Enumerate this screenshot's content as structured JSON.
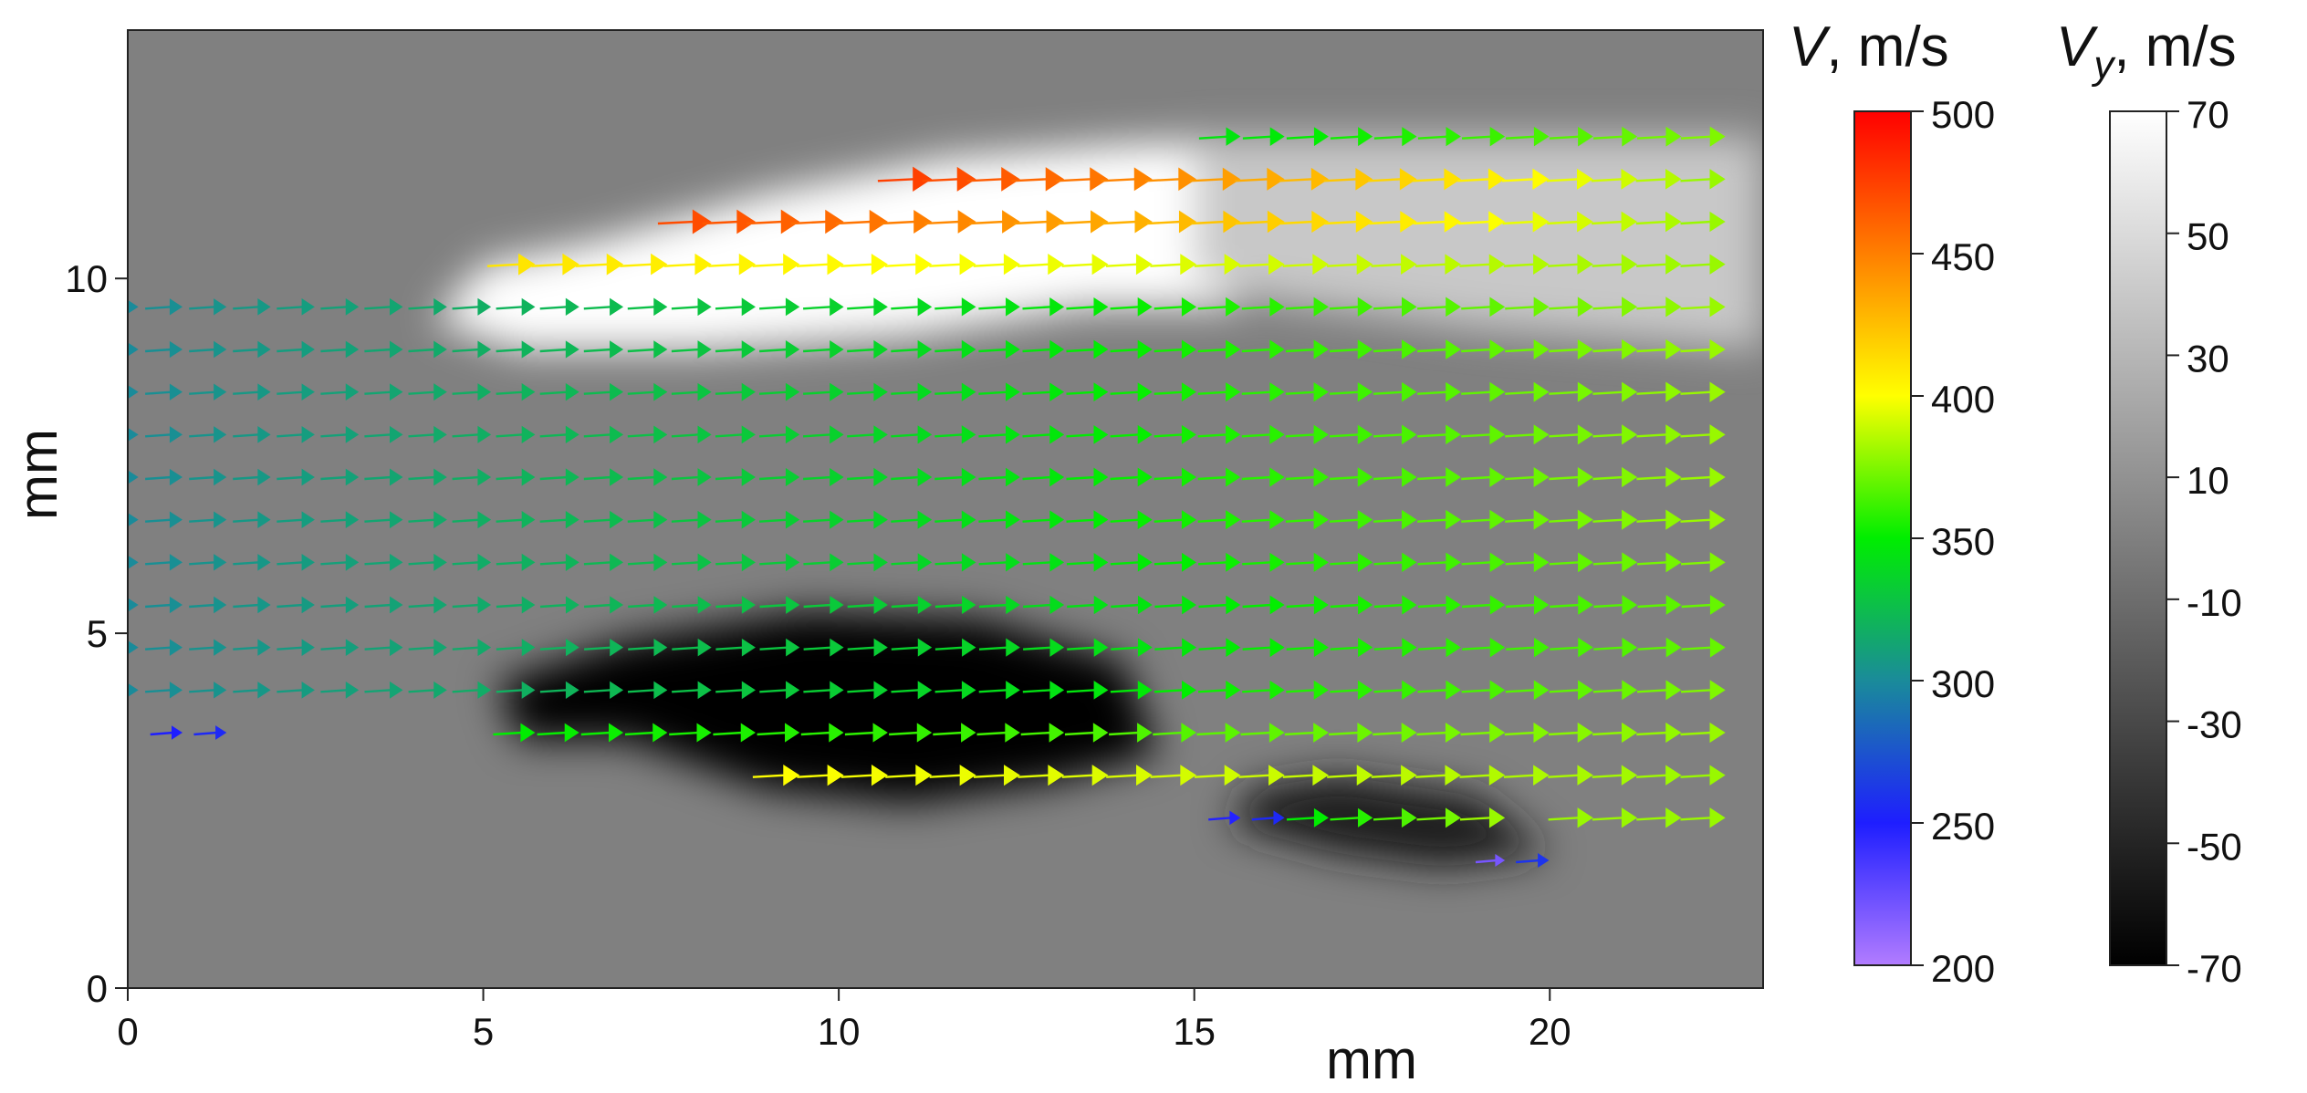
{
  "chart_data": {
    "type": "heatmap",
    "subtype": "velocity-vector field over grayscale contour map",
    "xlabel": "mm",
    "ylabel": "mm",
    "xlim": [
      0,
      23
    ],
    "ylim": [
      0,
      13.5
    ],
    "x_ticks": [
      "0",
      "5",
      "10",
      "15",
      "20"
    ],
    "y_ticks": [
      "0",
      "5",
      "10"
    ],
    "background_value_color": "#808080",
    "vector_colorbar": {
      "symbol": "V",
      "unit": ", m/s",
      "range": [
        200,
        500
      ],
      "ticks": [
        "500",
        "450",
        "400",
        "350",
        "300",
        "250",
        "200"
      ],
      "stops": [
        {
          "value": 200,
          "color": "#b27cff"
        },
        {
          "value": 250,
          "color": "#1e1eff"
        },
        {
          "value": 300,
          "color": "#1a8b9a"
        },
        {
          "value": 350,
          "color": "#00ee00"
        },
        {
          "value": 400,
          "color": "#ffff00"
        },
        {
          "value": 450,
          "color": "#ff7f00"
        },
        {
          "value": 500,
          "color": "#ff0000"
        }
      ]
    },
    "scalar_colorbar": {
      "symbol": "V",
      "subscript": "y",
      "unit": ", m/s",
      "range": [
        -70,
        70
      ],
      "ticks": [
        "70",
        "50",
        "30",
        "10",
        "-10",
        "-30",
        "-50",
        "-70"
      ],
      "stops": [
        {
          "value": -70,
          "color": "#000000"
        },
        {
          "value": 70,
          "color": "#ffffff"
        }
      ]
    },
    "vy_regions": [
      {
        "name": "upper-bright-band",
        "vy": 70,
        "points": [
          [
            5.0,
            10.2
          ],
          [
            6.5,
            10.5
          ],
          [
            9.0,
            11.2
          ],
          [
            11.5,
            11.7
          ],
          [
            14.0,
            11.9
          ],
          [
            15.5,
            11.95
          ],
          [
            15.6,
            9.6
          ],
          [
            13.5,
            9.6
          ],
          [
            11.0,
            9.2
          ],
          [
            8.0,
            9.0
          ],
          [
            5.5,
            9.0
          ],
          [
            4.3,
            9.4
          ]
        ]
      },
      {
        "name": "upper-right-mild-band",
        "vy": 40,
        "points": [
          [
            15.0,
            12.0
          ],
          [
            23.0,
            12.0
          ],
          [
            23.0,
            9.0
          ],
          [
            19.0,
            9.3
          ],
          [
            16.0,
            9.7
          ],
          [
            15.0,
            10.0
          ]
        ]
      },
      {
        "name": "lower-dark-band",
        "vy": -70,
        "points": [
          [
            5.5,
            3.5
          ],
          [
            7.0,
            3.5
          ],
          [
            9.0,
            2.8
          ],
          [
            11.0,
            2.6
          ],
          [
            13.0,
            2.9
          ],
          [
            14.5,
            3.3
          ],
          [
            14.0,
            4.6
          ],
          [
            12.0,
            5.2
          ],
          [
            9.5,
            5.3
          ],
          [
            7.0,
            4.9
          ],
          [
            5.2,
            4.3
          ]
        ]
      },
      {
        "name": "lower-right-dark-band",
        "vy": -55,
        "points": [
          [
            15.5,
            2.3
          ],
          [
            17.0,
            1.9
          ],
          [
            18.5,
            1.7
          ],
          [
            20.0,
            1.9
          ],
          [
            19.0,
            2.7
          ],
          [
            17.0,
            3.0
          ],
          [
            15.8,
            2.8
          ]
        ]
      }
    ],
    "vector_field": {
      "grid_x_start": 0.15,
      "grid_x_step": 0.62,
      "rows": [
        {
          "y": 12.0,
          "x_from": 15.3,
          "x_to": 23.0,
          "speed_start": 345,
          "speed_end": 375
        },
        {
          "y": 11.4,
          "x_from": 11.0,
          "x_to": 23.0,
          "speed_start": 475,
          "speed_end": 380
        },
        {
          "y": 10.8,
          "x_from": 8.2,
          "x_to": 23.0,
          "speed_start": 470,
          "speed_end": 380
        },
        {
          "y": 10.2,
          "x_from": 5.4,
          "x_to": 23.0,
          "speed_start": 410,
          "speed_end": 380
        },
        {
          "y": 9.6,
          "x_from": 0.0,
          "x_to": 23.0,
          "speed_start": 300,
          "speed_end": 380
        },
        {
          "y": 9.0,
          "x_from": 0.0,
          "x_to": 23.0,
          "speed_start": 300,
          "speed_end": 380
        },
        {
          "y": 8.4,
          "x_from": 0.0,
          "x_to": 23.0,
          "speed_start": 300,
          "speed_end": 380
        },
        {
          "y": 7.8,
          "x_from": 0.0,
          "x_to": 23.0,
          "speed_start": 300,
          "speed_end": 380
        },
        {
          "y": 7.2,
          "x_from": 0.0,
          "x_to": 23.0,
          "speed_start": 300,
          "speed_end": 380
        },
        {
          "y": 6.6,
          "x_from": 0.0,
          "x_to": 23.0,
          "speed_start": 300,
          "speed_end": 380
        },
        {
          "y": 6.0,
          "x_from": 0.0,
          "x_to": 23.0,
          "speed_start": 300,
          "speed_end": 375
        },
        {
          "y": 5.4,
          "x_from": 0.0,
          "x_to": 23.0,
          "speed_start": 300,
          "speed_end": 370
        },
        {
          "y": 4.8,
          "x_from": 0.0,
          "x_to": 23.0,
          "speed_start": 300,
          "speed_end": 370
        },
        {
          "y": 4.2,
          "x_from": 0.0,
          "x_to": 23.0,
          "speed_start": 300,
          "speed_end": 375
        },
        {
          "y": 3.6,
          "x_from": 0.7,
          "x_to": 1.5,
          "speed_start": 250,
          "speed_end": 255
        },
        {
          "y": 3.6,
          "x_from": 5.5,
          "x_to": 23.0,
          "speed_start": 350,
          "speed_end": 380
        },
        {
          "y": 3.0,
          "x_from": 9.2,
          "x_to": 23.0,
          "speed_start": 400,
          "speed_end": 380
        },
        {
          "y": 2.4,
          "x_from": 15.5,
          "x_to": 16.5,
          "speed_start": 248,
          "speed_end": 255
        },
        {
          "y": 2.4,
          "x_from": 16.5,
          "x_to": 19.8,
          "speed_start": 350,
          "speed_end": 380
        },
        {
          "y": 2.4,
          "x_from": 20.0,
          "x_to": 23.0,
          "speed_start": 380,
          "speed_end": 380
        },
        {
          "y": 1.8,
          "x_from": 18.8,
          "x_to": 20.3,
          "speed_start": 220,
          "speed_end": 260
        }
      ]
    }
  }
}
